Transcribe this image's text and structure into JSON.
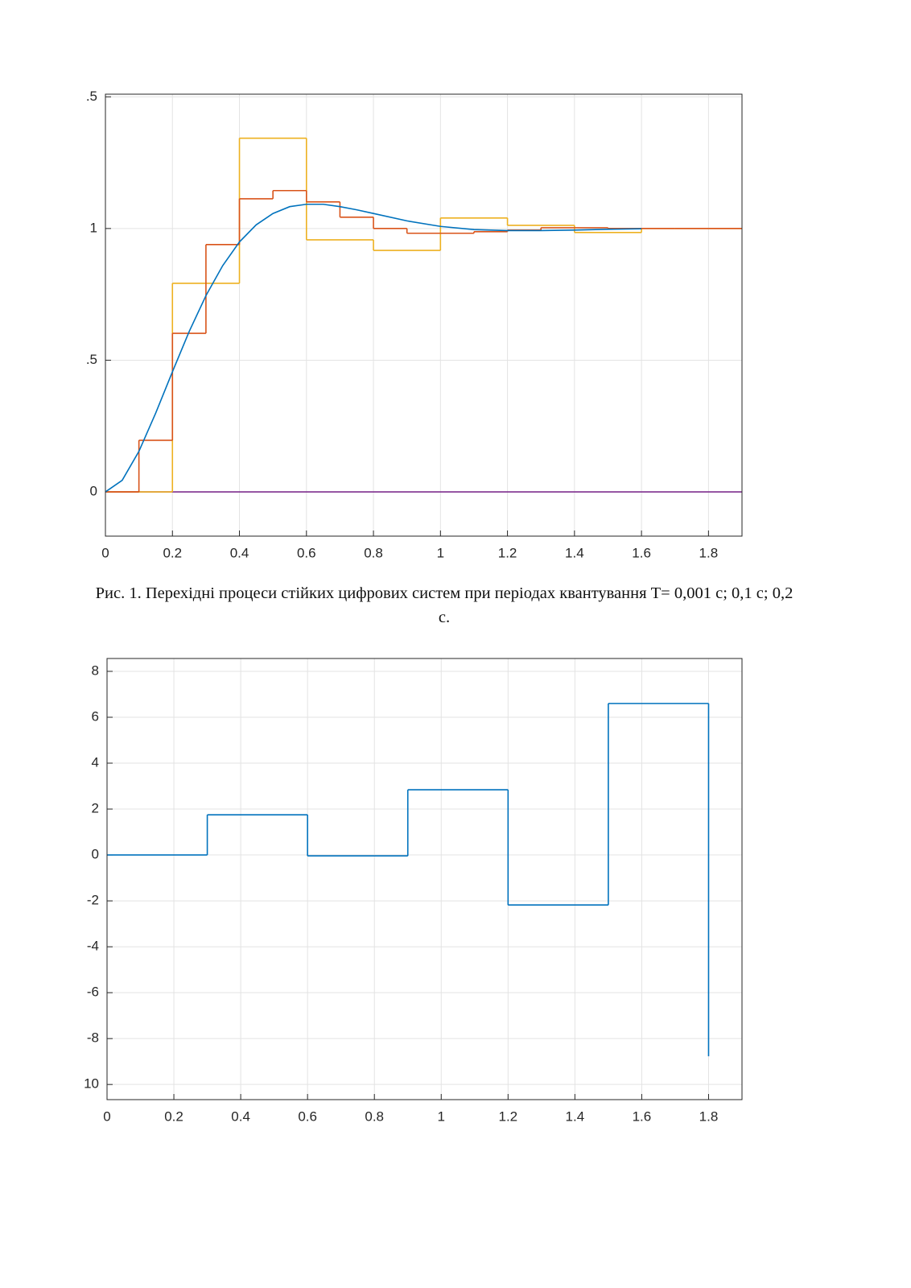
{
  "chart_data": [
    {
      "type": "line",
      "xlim": [
        0,
        1.9
      ],
      "ylim": [
        -0.168,
        1.51
      ],
      "xticks": [
        0,
        0.2,
        0.4,
        0.6,
        0.8,
        1,
        1.2,
        1.4,
        1.6,
        1.8
      ],
      "yticks": [
        0,
        {
          "value": 0.5,
          "label": ".5"
        },
        1,
        {
          "value": 1.5,
          "label": ".5"
        }
      ],
      "grid": true,
      "series": [
        {
          "color": "#7e2f8e",
          "step": false,
          "x": [
            0,
            1.9
          ],
          "values": [
            0,
            0
          ]
        },
        {
          "color": "#edb120",
          "step": true,
          "x": [
            0,
            0.2,
            0.4,
            0.6,
            0.8,
            1,
            1.2,
            1.4,
            1.6,
            1.8,
            1.9
          ],
          "values": [
            0,
            0.792,
            1.343,
            0.957,
            0.917,
            1.04,
            1.012,
            0.985,
            1.0,
            1.0,
            1.0
          ]
        },
        {
          "color": "#d95319",
          "step": true,
          "x": [
            0,
            0.1,
            0.2,
            0.3,
            0.4,
            0.5,
            0.6,
            0.7,
            0.8,
            0.9,
            1,
            1.1,
            1.2,
            1.3,
            1.4,
            1.5,
            1.6,
            1.7,
            1.8,
            1.9
          ],
          "values": [
            0,
            0.196,
            0.602,
            0.939,
            1.113,
            1.144,
            1.101,
            1.043,
            1.0,
            0.982,
            0.982,
            0.988,
            0.994,
            1.003,
            1.003,
            1.0,
            1.0,
            1.0,
            1.0,
            1.0
          ]
        },
        {
          "color": "#0072bd",
          "step": false,
          "x": [
            0,
            0.05,
            0.1,
            0.15,
            0.2,
            0.25,
            0.3,
            0.35,
            0.4,
            0.45,
            0.5,
            0.55,
            0.6,
            0.65,
            0.7,
            0.75,
            0.8,
            0.9,
            1,
            1.1,
            1.2,
            1.3,
            1.4,
            1.5,
            1.6
          ],
          "values": [
            0,
            0.044,
            0.154,
            0.299,
            0.456,
            0.609,
            0.745,
            0.859,
            0.949,
            1.014,
            1.057,
            1.083,
            1.092,
            1.092,
            1.083,
            1.071,
            1.057,
            1.029,
            1.008,
            0.996,
            0.992,
            0.992,
            0.994,
            0.997,
            0.999
          ]
        }
      ]
    },
    {
      "type": "line",
      "xlim": [
        0,
        1.9
      ],
      "ylim": [
        -10.66,
        8.56
      ],
      "xticks": [
        0,
        0.2,
        0.4,
        0.6,
        0.8,
        1,
        1.2,
        1.4,
        1.6,
        1.8
      ],
      "yticks": [
        {
          "value": -10,
          "label": "10"
        },
        -8,
        -6,
        -4,
        -2,
        0,
        2,
        4,
        6,
        8
      ],
      "grid": true,
      "series": [
        {
          "color": "#0072bd",
          "step": true,
          "x": [
            0,
            0.3,
            0.6,
            0.9,
            1.2,
            1.5,
            1.8
          ],
          "values": [
            0,
            1.75,
            -0.04,
            2.84,
            -2.18,
            6.6,
            -8.77
          ]
        }
      ]
    }
  ],
  "caption": "Рис. 1. Перехідні процеси стійких цифрових систем при періодах квантування T= 0,001 с; 0,1 с; 0,2 с."
}
